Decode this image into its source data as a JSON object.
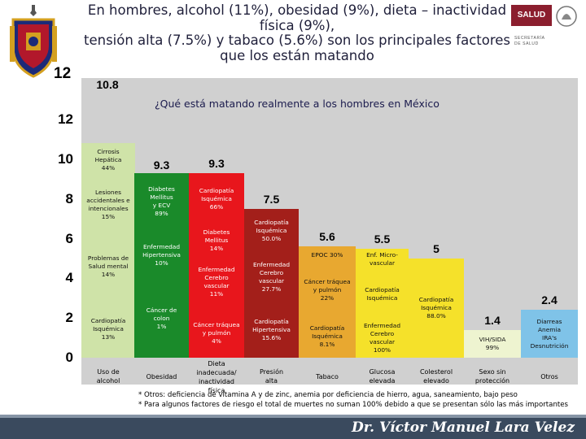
{
  "slide": {
    "title_lines": [
      "En hombres, alcohol (11%), obesidad (9%), dieta – inactividad",
      "física (9%),",
      "tensión alta (7.5%)  y tabaco (5.6%) son los principales factores",
      "que los están matando"
    ],
    "logo_number": "12",
    "salud_label": "SALUD",
    "salud_sub_lines": [
      "SECRETARÍA",
      "DE SALUD"
    ],
    "signature": "Dr. Víctor Manuel Lara Velez",
    "notes": [
      "* Otros: deficiencia de vitamina A y de zinc, anemia por deficiencia de hierro, agua, saneamiento, bajo peso",
      "* Para algunos factores de riesgo el total de muertes no suman 100% debido a que se presentan sólo las más importantes"
    ]
  },
  "chart_data": {
    "type": "bar",
    "stacked": true,
    "title": "¿Qué está matando realmente a los hombres en México",
    "ylim": [
      0,
      12
    ],
    "yticks": [
      0,
      2,
      4,
      6,
      8,
      10,
      12
    ],
    "grid": false,
    "bars": [
      {
        "category_lines": [
          "Uso de",
          "alcohol"
        ],
        "total": 10.8,
        "segments": [
          {
            "label_lines": [
              "Cardiopatía",
              "Isquémica",
              "13%"
            ],
            "value": 2.9,
            "color": "#cfe3a8"
          },
          {
            "label_lines": [
              "Problemas de",
              "Salud mental",
              "14%"
            ],
            "value": 3.4,
            "color": "#cfe3a8"
          },
          {
            "label_lines": [
              "Lesiones",
              "accidentales e",
              "intencionales",
              "15%"
            ],
            "value": 2.8,
            "color": "#cfe3a8"
          },
          {
            "label_lines": [
              "Cirrosis",
              "Hepática",
              "44%"
            ],
            "value": 1.7,
            "color": "#cfe3a8"
          }
        ]
      },
      {
        "category_lines": [
          "Obesidad"
        ],
        "total": 9.3,
        "segments": [
          {
            "label_lines": [
              "Cáncer de",
              "colon",
              "1%"
            ],
            "value": 3.9,
            "color": "#1a8a2a"
          },
          {
            "label_lines": [
              "Enfermedad",
              "Hipertensiva",
              "10%"
            ],
            "value": 2.5,
            "color": "#1a8a2a"
          },
          {
            "label_lines": [
              "Diabetes",
              "Mellitus",
              "y ECV",
              "89%"
            ],
            "value": 2.9,
            "color": "#1a8a2a"
          }
        ]
      },
      {
        "category_lines": [
          "Dieta",
          "inadecuada/",
          "inactividad",
          "física"
        ],
        "total": 9.3,
        "segments": [
          {
            "label_lines": [
              "Cáncer tráquea",
              "y pulmón",
              "4%"
            ],
            "value": 2.5,
            "color": "#e8161c"
          },
          {
            "label_lines": [
              "Enfermedad",
              "Cerebro",
              "vascular",
              "11%"
            ],
            "value": 2.6,
            "color": "#e8161c"
          },
          {
            "label_lines": [
              "Diabetes",
              "Mellitus",
              "14%"
            ],
            "value": 1.6,
            "color": "#e8161c"
          },
          {
            "label_lines": [
              "Cardiopatía",
              "Isquémica",
              "66%"
            ],
            "value": 2.6,
            "color": "#e8161c"
          }
        ]
      },
      {
        "category_lines": [
          "Presión",
          "alta"
        ],
        "total": 7.5,
        "segments": [
          {
            "label_lines": [
              "Cardiopatía",
              "Hipertensiva",
              "15.6%"
            ],
            "value": 2.8,
            "color": "#a31f1a"
          },
          {
            "label_lines": [
              "Enfermedad",
              "Cerebro",
              "vascular",
              "27.7%"
            ],
            "value": 2.5,
            "color": "#a31f1a"
          },
          {
            "label_lines": [
              "Cardiopatía",
              "Isquémica",
              "50.0%"
            ],
            "value": 2.2,
            "color": "#a31f1a"
          }
        ]
      },
      {
        "category_lines": [
          "Tabaco"
        ],
        "total": 5.6,
        "segments": [
          {
            "label_lines": [
              "Cardiopatía",
              "Isquémica",
              "8.1%"
            ],
            "value": 2.1,
            "color": "#e8a830"
          },
          {
            "label_lines": [
              "Cáncer tráquea",
              "y pulmón",
              "22%"
            ],
            "value": 2.6,
            "color": "#e8a830"
          },
          {
            "label_lines": [
              "EPOC 30%"
            ],
            "value": 0.9,
            "color": "#e8a830"
          }
        ]
      },
      {
        "category_lines": [
          "Glucosa",
          "elevada"
        ],
        "total": 5.5,
        "segments": [
          {
            "label_lines": [
              "Enfermedad",
              "Cerebro",
              "vascular",
              "100%"
            ],
            "value": 2.0,
            "color": "#f5e12a"
          },
          {
            "label_lines": [
              "Cardiopatía",
              "Isquémica"
            ],
            "value": 2.4,
            "color": "#f5e12a"
          },
          {
            "label_lines": [
              "Enf. Micro-",
              "vascular"
            ],
            "value": 1.1,
            "color": "#f5e12a"
          }
        ]
      },
      {
        "category_lines": [
          "Colesterol",
          "elevado"
        ],
        "total": 5.0,
        "segments": [
          {
            "label_lines": [
              "Cardiopatía",
              "Isquémica",
              "88.0%"
            ],
            "value": 5.0,
            "color": "#f5e12a"
          }
        ]
      },
      {
        "category_lines": [
          "Sexo sin",
          "protección"
        ],
        "total": 1.4,
        "segments": [
          {
            "label_lines": [
              "VIH/SIDA",
              "99%"
            ],
            "value": 1.4,
            "color": "#eef4d0"
          }
        ]
      },
      {
        "category_lines": [
          "Otros"
        ],
        "total": 2.4,
        "segments": [
          {
            "label_lines": [
              "Diarreas",
              "Anemia",
              "IRA's",
              "Desnutrición"
            ],
            "value": 2.4,
            "color": "#7fc3e8"
          }
        ]
      }
    ]
  }
}
